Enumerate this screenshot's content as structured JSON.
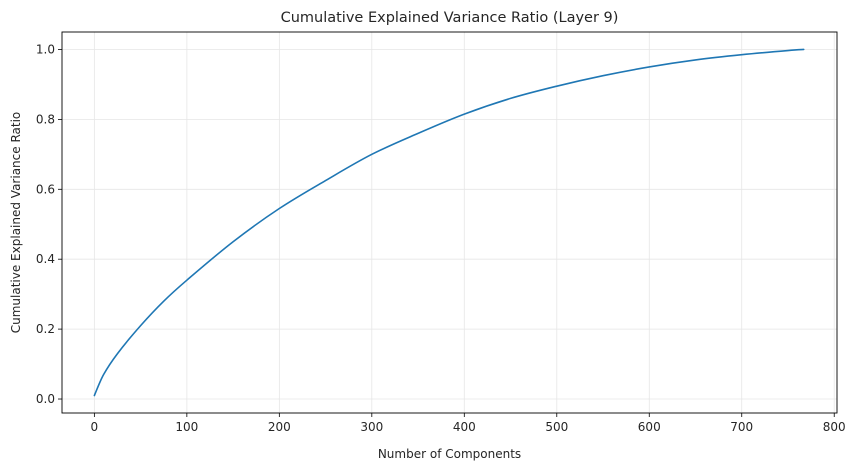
{
  "chart_data": {
    "type": "line",
    "title": "Cumulative Explained Variance Ratio (Layer 9)",
    "xlabel": "Number of Components",
    "ylabel": "Cumulative Explained Variance Ratio",
    "xlim": [
      -35,
      803
    ],
    "ylim": [
      -0.04,
      1.05
    ],
    "xticks": [
      0,
      100,
      200,
      300,
      400,
      500,
      600,
      700,
      800
    ],
    "xtick_labels": [
      "0",
      "100",
      "200",
      "300",
      "400",
      "500",
      "600",
      "700",
      "800"
    ],
    "yticks": [
      0.0,
      0.2,
      0.4,
      0.6,
      0.8,
      1.0
    ],
    "ytick_labels": [
      "0.0",
      "0.2",
      "0.4",
      "0.6",
      "0.8",
      "1.0"
    ],
    "grid": true,
    "series": [
      {
        "color": "#1f77b4",
        "x": [
          0,
          10,
          25,
          50,
          75,
          100,
          150,
          200,
          250,
          300,
          350,
          400,
          450,
          500,
          550,
          600,
          650,
          700,
          750,
          767
        ],
        "y": [
          0.01,
          0.07,
          0.13,
          0.21,
          0.28,
          0.34,
          0.45,
          0.545,
          0.625,
          0.7,
          0.76,
          0.815,
          0.86,
          0.895,
          0.925,
          0.95,
          0.97,
          0.985,
          0.997,
          1.0
        ]
      }
    ]
  }
}
